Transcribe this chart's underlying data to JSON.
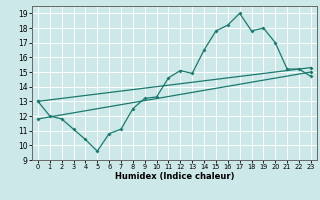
{
  "xlabel": "Humidex (Indice chaleur)",
  "bg_color": "#cce8e8",
  "grid_color": "#ffffff",
  "line_color": "#1a7a6e",
  "xlim": [
    -0.5,
    23.5
  ],
  "ylim": [
    9,
    19.5
  ],
  "xticks": [
    0,
    1,
    2,
    3,
    4,
    5,
    6,
    7,
    8,
    9,
    10,
    11,
    12,
    13,
    14,
    15,
    16,
    17,
    18,
    19,
    20,
    21,
    22,
    23
  ],
  "yticks": [
    9,
    10,
    11,
    12,
    13,
    14,
    15,
    16,
    17,
    18,
    19
  ],
  "main_x": [
    0,
    1,
    2,
    3,
    4,
    5,
    6,
    7,
    8,
    9,
    10,
    11,
    12,
    13,
    14,
    15,
    16,
    17,
    18,
    19,
    20,
    21,
    22,
    23
  ],
  "main_y": [
    13.0,
    12.0,
    11.8,
    11.1,
    10.4,
    9.6,
    10.8,
    11.1,
    12.5,
    13.2,
    13.3,
    14.6,
    15.1,
    14.9,
    16.5,
    17.8,
    18.2,
    19.0,
    17.8,
    18.0,
    17.0,
    15.2,
    15.2,
    14.7
  ],
  "line2_x": [
    0,
    23
  ],
  "line2_y": [
    11.8,
    15.0
  ],
  "line3_x": [
    0,
    23
  ],
  "line3_y": [
    13.0,
    15.3
  ]
}
